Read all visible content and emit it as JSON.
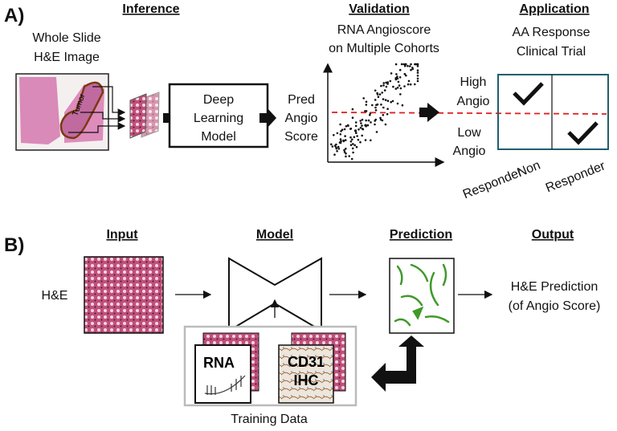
{
  "panel_a": {
    "label": "A)",
    "inference": {
      "heading": "Inference",
      "slide_caption": [
        "Whole Slide",
        "H&E Image"
      ],
      "tumor_label": "Tumor",
      "model_box": [
        "Deep",
        "Learning",
        "Model"
      ],
      "output": [
        "Pred",
        "Angio",
        "Score"
      ]
    },
    "validation": {
      "heading": "Validation",
      "caption": [
        "RNA Angioscore",
        "on Multiple Cohorts"
      ]
    },
    "application": {
      "heading": "Application",
      "caption": [
        "AA Response",
        "Clinical Trial"
      ],
      "rows": [
        [
          "High",
          "Angio"
        ],
        [
          "Low",
          "Angio"
        ]
      ],
      "columns": [
        "Responder",
        "Non",
        "Responder"
      ]
    }
  },
  "panel_b": {
    "label": "B)",
    "headings": {
      "input": "Input",
      "model": "Model",
      "prediction": "Prediction",
      "output": "Output"
    },
    "input_label": "H&E",
    "output_text": [
      "H&E Prediction",
      "(of Angio Score)"
    ],
    "training": {
      "caption": "Training Data",
      "rna": "RNA",
      "ihc": [
        "CD31",
        "IHC"
      ]
    }
  },
  "colors": {
    "accent_box": "#1f5f6f",
    "threshold_line": "#e02020",
    "prediction_vessels": "#3f9a2a",
    "he_stain": "#c0507a"
  }
}
